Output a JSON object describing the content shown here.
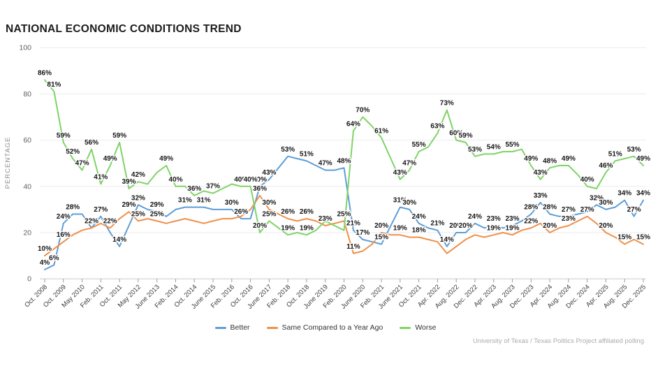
{
  "chart_data": {
    "type": "line",
    "title": "NATIONAL ECONOMIC CONDITIONS TREND",
    "xlabel": "",
    "ylabel": "PERCENTAGE",
    "ylim": [
      0,
      100
    ],
    "yticks": [
      0,
      20,
      40,
      60,
      80,
      100
    ],
    "grid": true,
    "legend_position": "bottom",
    "x_tick_labels": [
      "Oct. 2008",
      "Oct. 2009",
      "May 2010",
      "Feb. 2011",
      "Oct. 2011",
      "May 2012",
      "June 2013",
      "Feb. 2014",
      "Oct. 2014",
      "June 2015",
      "Feb. 2016",
      "Oct. 2016",
      "June 2017",
      "Feb. 2018",
      "Oct. 2018",
      "June 2019",
      "Feb. 2020",
      "June 2020",
      "Feb. 2021",
      "June 2021",
      "Oct. 2021",
      "Apr. 2022",
      "Aug. 2022",
      "Dec. 2022",
      "Apr. 2023",
      "Aug. 2023",
      "Dec. 2023",
      "Apr. 2024",
      "Aug. 2024",
      "Dec. 2024",
      "Apr. 2025",
      "Aug. 2025",
      "Dec. 2025"
    ],
    "series": [
      {
        "key": "better",
        "name": "Better",
        "color": "#5e9ed6",
        "values": [
          4,
          6,
          24,
          28,
          28,
          22,
          27,
          20,
          14,
          23,
          32,
          30,
          29,
          27,
          30,
          31,
          31,
          31,
          30,
          30,
          30,
          26,
          26,
          40,
          43,
          48,
          53,
          52,
          51,
          49,
          47,
          47,
          48,
          21,
          17,
          16,
          15,
          23,
          31,
          30,
          24,
          22,
          21,
          14,
          20,
          20,
          24,
          22,
          23,
          22,
          23,
          25,
          28,
          33,
          28,
          27,
          27,
          28,
          29,
          32,
          30,
          31,
          34,
          27,
          34
        ],
        "label_points": [
          0,
          1,
          2,
          3,
          6,
          8,
          10,
          12,
          15,
          17,
          20,
          21,
          23,
          24,
          26,
          28,
          30,
          32,
          33,
          34,
          36,
          38,
          39,
          40,
          42,
          43,
          44,
          45,
          46,
          48,
          50,
          52,
          53,
          54,
          56,
          59,
          60,
          62,
          63,
          64
        ]
      },
      {
        "key": "same",
        "name": "Same Compared to a Year Ago",
        "color": "#ef9049",
        "values": [
          10,
          13,
          16,
          19,
          21,
          22,
          24,
          22,
          26,
          29,
          25,
          26,
          25,
          24,
          25,
          26,
          25,
          24,
          25,
          26,
          26,
          27,
          30,
          36,
          30,
          28,
          26,
          25,
          26,
          25,
          23,
          24,
          25,
          11,
          12,
          15,
          20,
          19,
          19,
          18,
          18,
          17,
          16,
          11,
          14,
          17,
          19,
          18,
          19,
          20,
          19,
          21,
          22,
          24,
          20,
          22,
          23,
          25,
          27,
          24,
          20,
          18,
          15,
          17,
          15
        ],
        "label_points": [
          0,
          2,
          5,
          7,
          9,
          10,
          12,
          23,
          24,
          26,
          28,
          30,
          32,
          33,
          36,
          38,
          40,
          48,
          50,
          52,
          54,
          56,
          58,
          60,
          62,
          64
        ]
      },
      {
        "key": "worse",
        "name": "Worse",
        "color": "#7ed467",
        "values": [
          86,
          81,
          59,
          52,
          47,
          56,
          41,
          49,
          59,
          39,
          42,
          41,
          46,
          49,
          40,
          40,
          36,
          38,
          37,
          39,
          41,
          40,
          40,
          20,
          25,
          22,
          19,
          20,
          19,
          21,
          25,
          23,
          21,
          64,
          70,
          66,
          61,
          52,
          43,
          47,
          55,
          57,
          63,
          73,
          60,
          59,
          53,
          54,
          54,
          55,
          55,
          56,
          49,
          43,
          48,
          49,
          49,
          45,
          40,
          39,
          46,
          51,
          52,
          53,
          49
        ],
        "label_points": [
          0,
          1,
          2,
          3,
          4,
          5,
          6,
          7,
          8,
          9,
          10,
          13,
          14,
          16,
          18,
          21,
          22,
          23,
          24,
          26,
          28,
          33,
          34,
          36,
          38,
          39,
          40,
          42,
          43,
          44,
          45,
          46,
          48,
          50,
          52,
          53,
          54,
          56,
          58,
          60,
          61,
          63,
          64
        ]
      }
    ]
  },
  "footer": {
    "source": "University of Texas / Texas Politics Project affiliated polling"
  }
}
